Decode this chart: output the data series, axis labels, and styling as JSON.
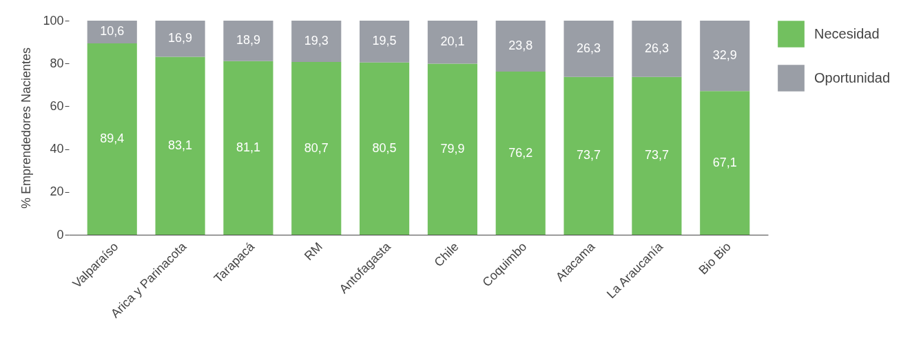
{
  "chart_data": {
    "type": "bar",
    "stacked": true,
    "ylabel": "% Emprendedores Nacientes",
    "categories": [
      "Valparaíso",
      "Arica y Parinacota",
      "Tarapacá",
      "RM",
      "Antofagasta",
      "Chile",
      "Coquimbo",
      "Atacama",
      "La Araucanía",
      "Bio Bio"
    ],
    "series": [
      {
        "name": "Necesidad",
        "color": "#72c05f",
        "values": [
          89.4,
          83.1,
          81.1,
          80.7,
          80.5,
          79.9,
          76.2,
          73.7,
          73.7,
          67.1
        ],
        "value_labels": [
          "89,4",
          "83,1",
          "81,1",
          "80,7",
          "80,5",
          "79,9",
          "76,2",
          "73,7",
          "73,7",
          "67,1"
        ]
      },
      {
        "name": "Oportunidad",
        "color": "#9a9ea6",
        "values": [
          10.6,
          16.9,
          18.9,
          19.3,
          19.5,
          20.1,
          23.8,
          26.3,
          26.3,
          32.9
        ],
        "value_labels": [
          "10,6",
          "16,9",
          "18,9",
          "19,3",
          "19,5",
          "20,1",
          "23,8",
          "26,3",
          "26,3",
          "32,9"
        ]
      }
    ],
    "ylim": [
      0,
      100
    ],
    "yticks": [
      0,
      20,
      40,
      60,
      80,
      100
    ],
    "grid": false,
    "legend": "right"
  }
}
